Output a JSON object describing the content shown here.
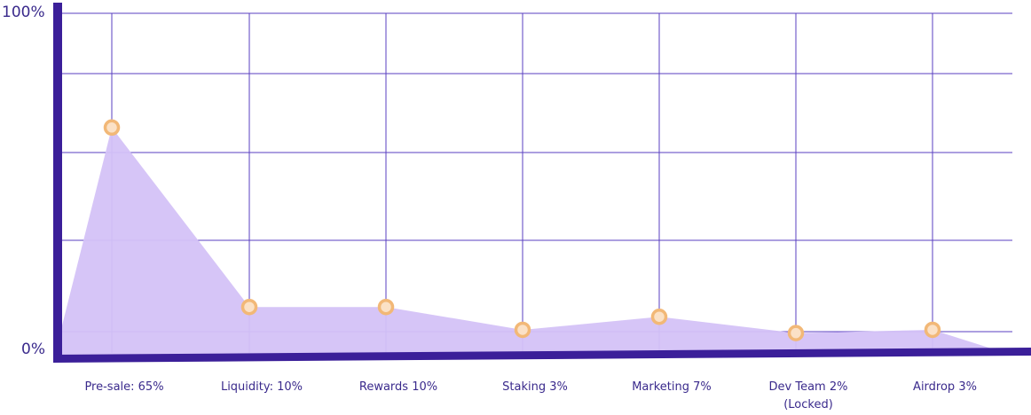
{
  "chart_data": {
    "type": "area",
    "title": "",
    "xlabel": "",
    "ylabel": "",
    "ylim": [
      0,
      100
    ],
    "y_tick_labels": [
      "100%",
      "0%"
    ],
    "grid": true,
    "categories": [
      "Pre-sale:  65%",
      "Liquidity: 10%",
      "Rewards 10%",
      "Staking 3%",
      "Marketing 7%",
      "Dev Team 2%\n(Locked)",
      "Airdrop 3%"
    ],
    "values": [
      65,
      10,
      10,
      3,
      7,
      2,
      3
    ],
    "colors": {
      "axis": "#3b1f99",
      "grid": "#5a3fc0",
      "area": "#d4c2f7",
      "marker_fill": "#fbe1c6",
      "marker_stroke": "#f2b877"
    }
  }
}
